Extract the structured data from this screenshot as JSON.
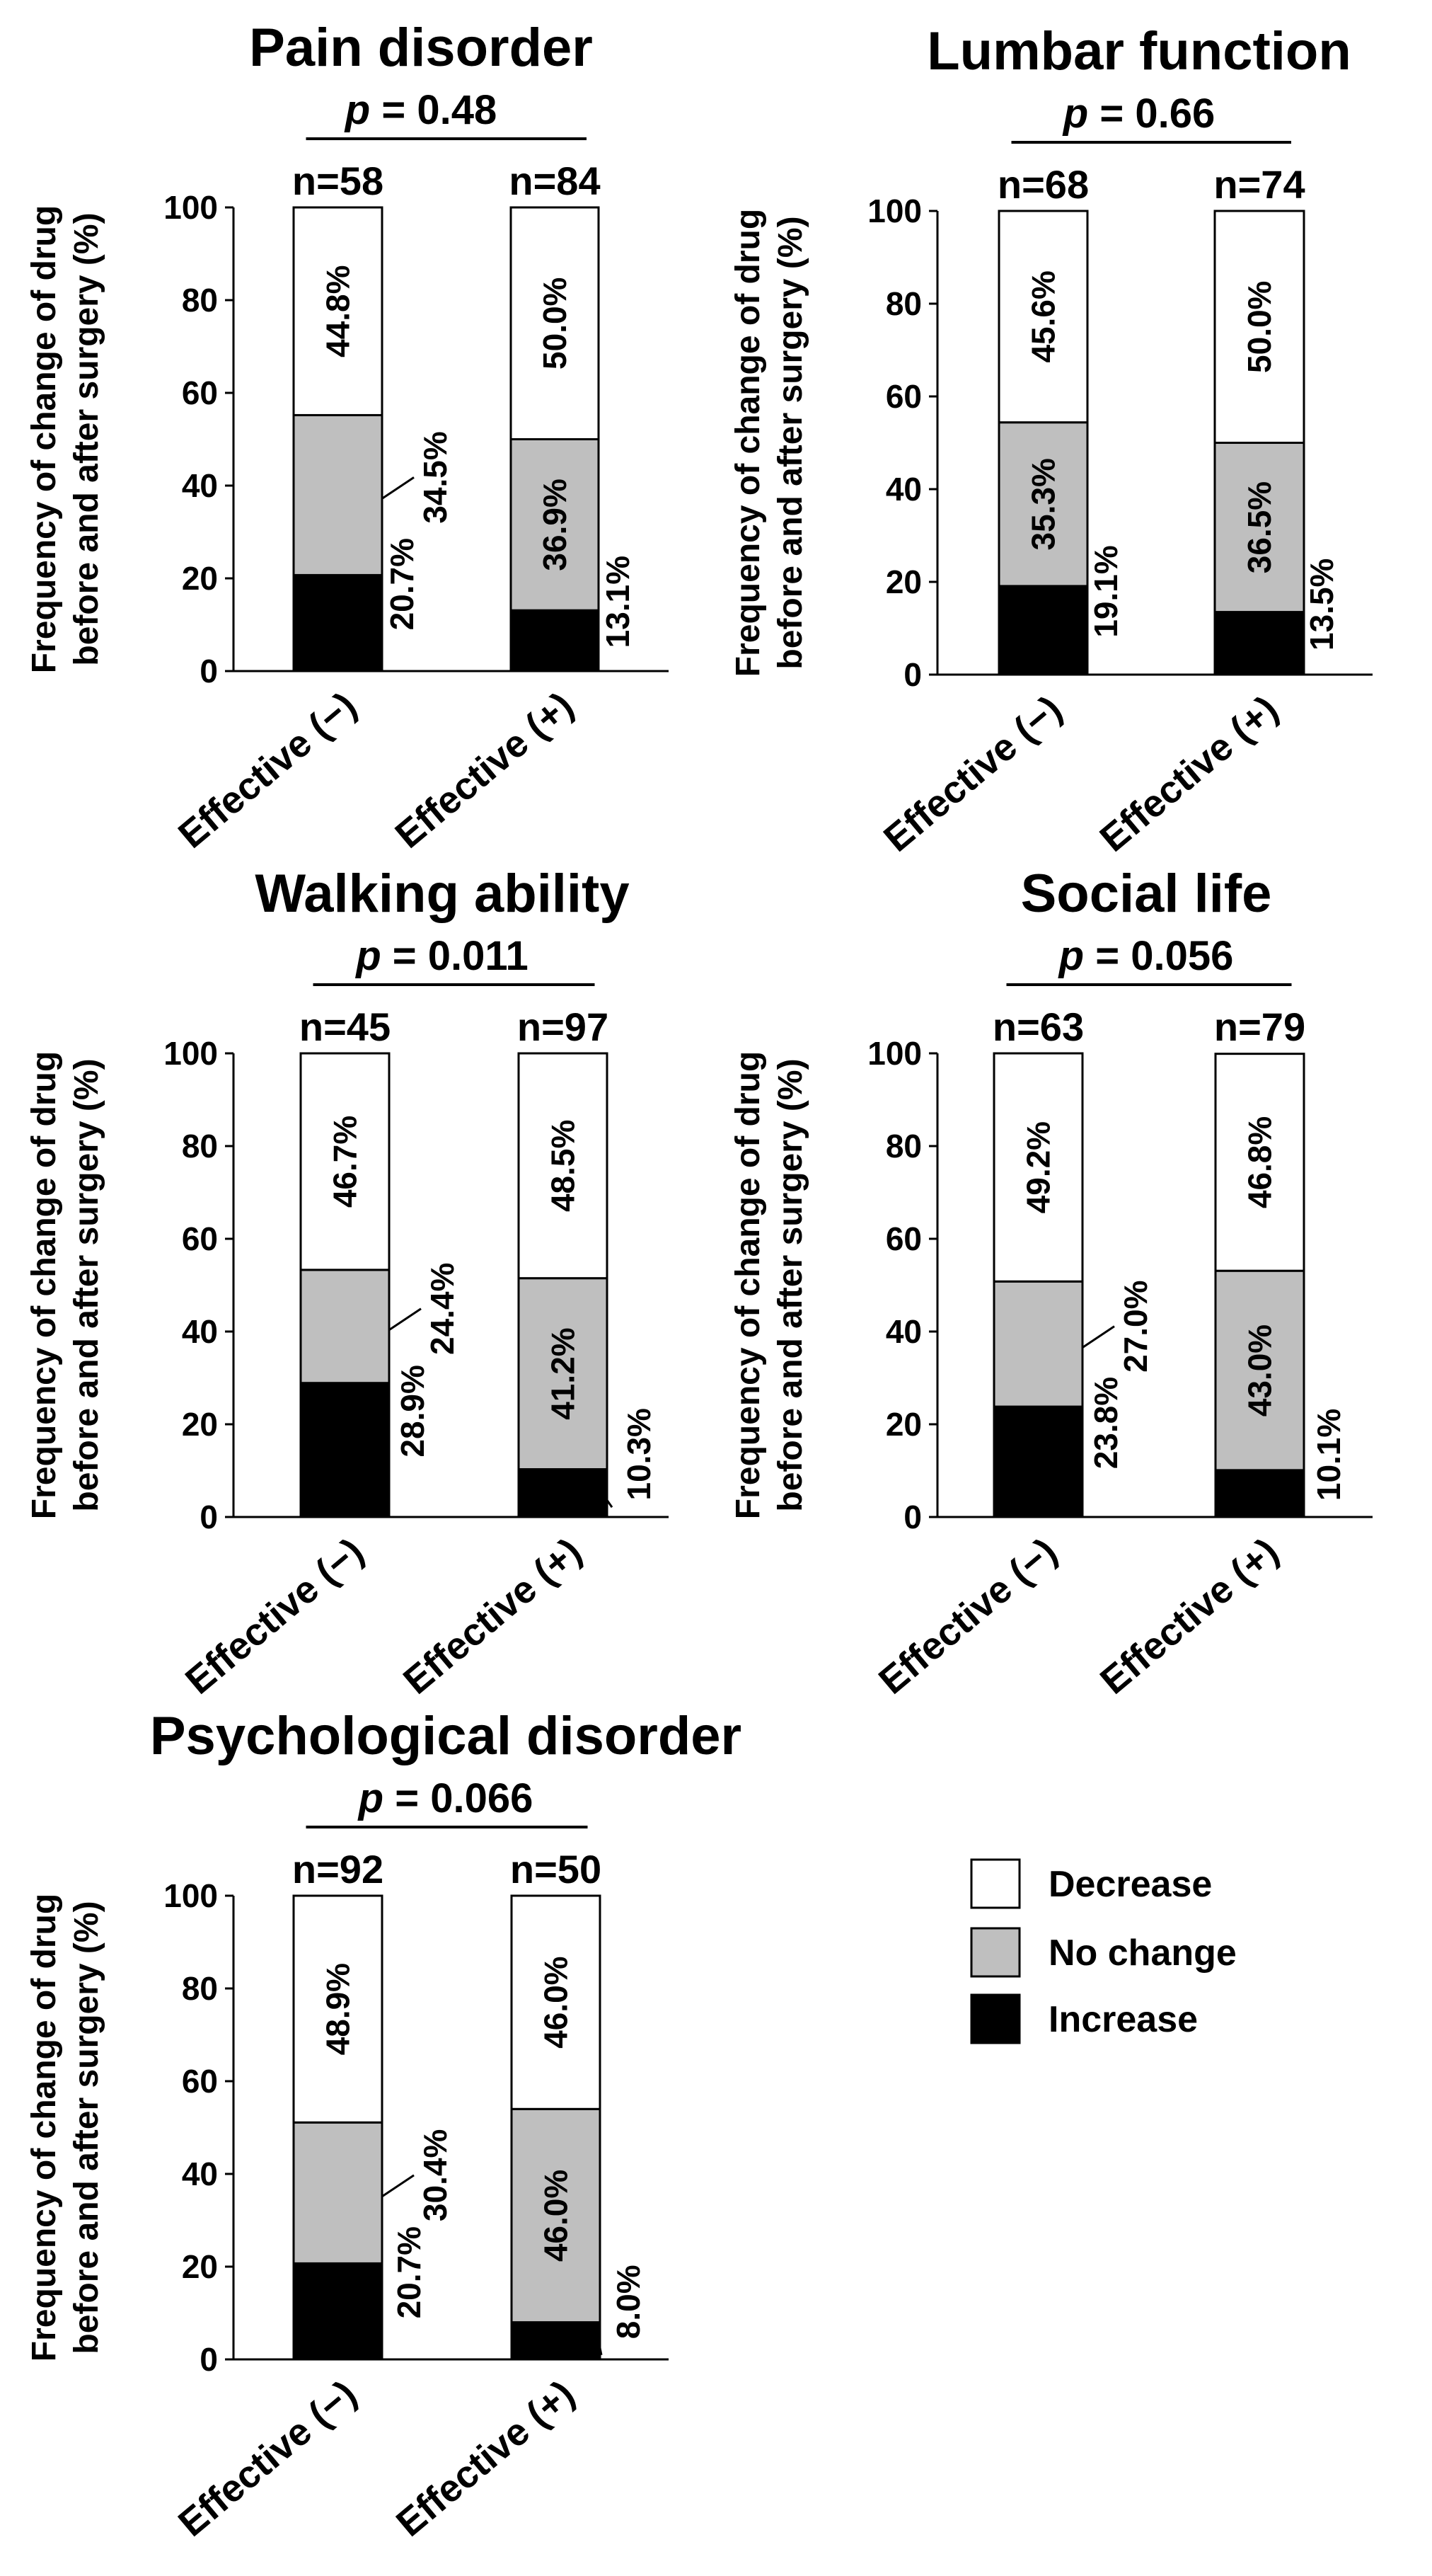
{
  "colors": {
    "decrease": "#ffffff",
    "no_change": "#bfbfbf",
    "increase": "#000000"
  },
  "legend": {
    "items": [
      {
        "key": "decrease",
        "label": "Decrease"
      },
      {
        "key": "no_change",
        "label": "No change"
      },
      {
        "key": "increase",
        "label": "Increase"
      }
    ]
  },
  "chart_data": [
    {
      "type": "bar",
      "stacked": true,
      "title": "Pain disorder",
      "p_prefix": "p",
      "p_value": "= 0.48",
      "ylabel_line1": "Frequency of change of drug",
      "ylabel_line2": "before and after surgery (%)",
      "ylim": [
        0,
        100
      ],
      "yticks": [
        0,
        20,
        40,
        60,
        80,
        100
      ],
      "categories": [
        "Effective (−)",
        "Effective (+)"
      ],
      "n_labels": [
        "n=58",
        "n=84"
      ],
      "series": [
        {
          "name": "Increase",
          "values": [
            20.7,
            13.1
          ],
          "labels": [
            "20.7%",
            "13.1%"
          ]
        },
        {
          "name": "No change",
          "values": [
            34.5,
            36.9
          ],
          "labels": [
            "34.5%",
            "36.9%"
          ]
        },
        {
          "name": "Decrease",
          "values": [
            44.8,
            50.0
          ],
          "labels": [
            "44.8%",
            "50.0%"
          ]
        }
      ]
    },
    {
      "type": "bar",
      "stacked": true,
      "title": "Lumbar function",
      "p_prefix": "p",
      "p_value": "= 0.66",
      "ylabel_line1": "Frequency of change of drug",
      "ylabel_line2": "before and after surgery (%)",
      "ylim": [
        0,
        100
      ],
      "yticks": [
        0,
        20,
        40,
        60,
        80,
        100
      ],
      "categories": [
        "Effective (−)",
        "Effective (+)"
      ],
      "n_labels": [
        "n=68",
        "n=74"
      ],
      "series": [
        {
          "name": "Increase",
          "values": [
            19.1,
            13.5
          ],
          "labels": [
            "19.1%",
            "13.5%"
          ]
        },
        {
          "name": "No change",
          "values": [
            35.3,
            36.5
          ],
          "labels": [
            "35.3%",
            "36.5%"
          ]
        },
        {
          "name": "Decrease",
          "values": [
            45.6,
            50.0
          ],
          "labels": [
            "45.6%",
            "50.0%"
          ]
        }
      ]
    },
    {
      "type": "bar",
      "stacked": true,
      "title": "Walking ability",
      "p_prefix": "p",
      "p_value": "= 0.011",
      "ylabel_line1": "Frequency of change of drug",
      "ylabel_line2": "before and after surgery (%)",
      "ylim": [
        0,
        100
      ],
      "yticks": [
        0,
        20,
        40,
        60,
        80,
        100
      ],
      "categories": [
        "Effective (−)",
        "Effective (+)"
      ],
      "n_labels": [
        "n=45",
        "n=97"
      ],
      "series": [
        {
          "name": "Increase",
          "values": [
            28.9,
            10.3
          ],
          "labels": [
            "28.9%",
            "10.3%"
          ]
        },
        {
          "name": "No change",
          "values": [
            24.4,
            41.2
          ],
          "labels": [
            "24.4%",
            "41.2%"
          ]
        },
        {
          "name": "Decrease",
          "values": [
            46.7,
            48.5
          ],
          "labels": [
            "46.7%",
            "48.5%"
          ]
        }
      ]
    },
    {
      "type": "bar",
      "stacked": true,
      "title": "Social life",
      "p_prefix": "p",
      "p_value": "= 0.056",
      "ylabel_line1": "Frequency of change of drug",
      "ylabel_line2": "before and after surgery (%)",
      "ylim": [
        0,
        100
      ],
      "yticks": [
        0,
        20,
        40,
        60,
        80,
        100
      ],
      "categories": [
        "Effective (−)",
        "Effective (+)"
      ],
      "n_labels": [
        "n=63",
        "n=79"
      ],
      "series": [
        {
          "name": "Increase",
          "values": [
            23.8,
            10.1
          ],
          "labels": [
            "23.8%",
            "10.1%"
          ]
        },
        {
          "name": "No change",
          "values": [
            27.0,
            43.0
          ],
          "labels": [
            "27.0%",
            "43.0%"
          ]
        },
        {
          "name": "Decrease",
          "values": [
            49.2,
            46.8
          ],
          "labels": [
            "49.2%",
            "46.8%"
          ]
        }
      ]
    },
    {
      "type": "bar",
      "stacked": true,
      "title": "Psychological disorder",
      "p_prefix": "p",
      "p_value": "= 0.066",
      "ylabel_line1": "Frequency of change of drug",
      "ylabel_line2": "before and after surgery (%)",
      "ylim": [
        0,
        100
      ],
      "yticks": [
        0,
        20,
        40,
        60,
        80,
        100
      ],
      "categories": [
        "Effective (−)",
        "Effective (+)"
      ],
      "n_labels": [
        "n=92",
        "n=50"
      ],
      "series": [
        {
          "name": "Increase",
          "values": [
            20.7,
            8.0
          ],
          "labels": [
            "20.7%",
            "8.0%"
          ]
        },
        {
          "name": "No change",
          "values": [
            30.4,
            46.0
          ],
          "labels": [
            "30.4%",
            "46.0%"
          ]
        },
        {
          "name": "Decrease",
          "values": [
            48.9,
            46.0
          ],
          "labels": [
            "48.9%",
            "46.0%"
          ]
        }
      ]
    }
  ]
}
